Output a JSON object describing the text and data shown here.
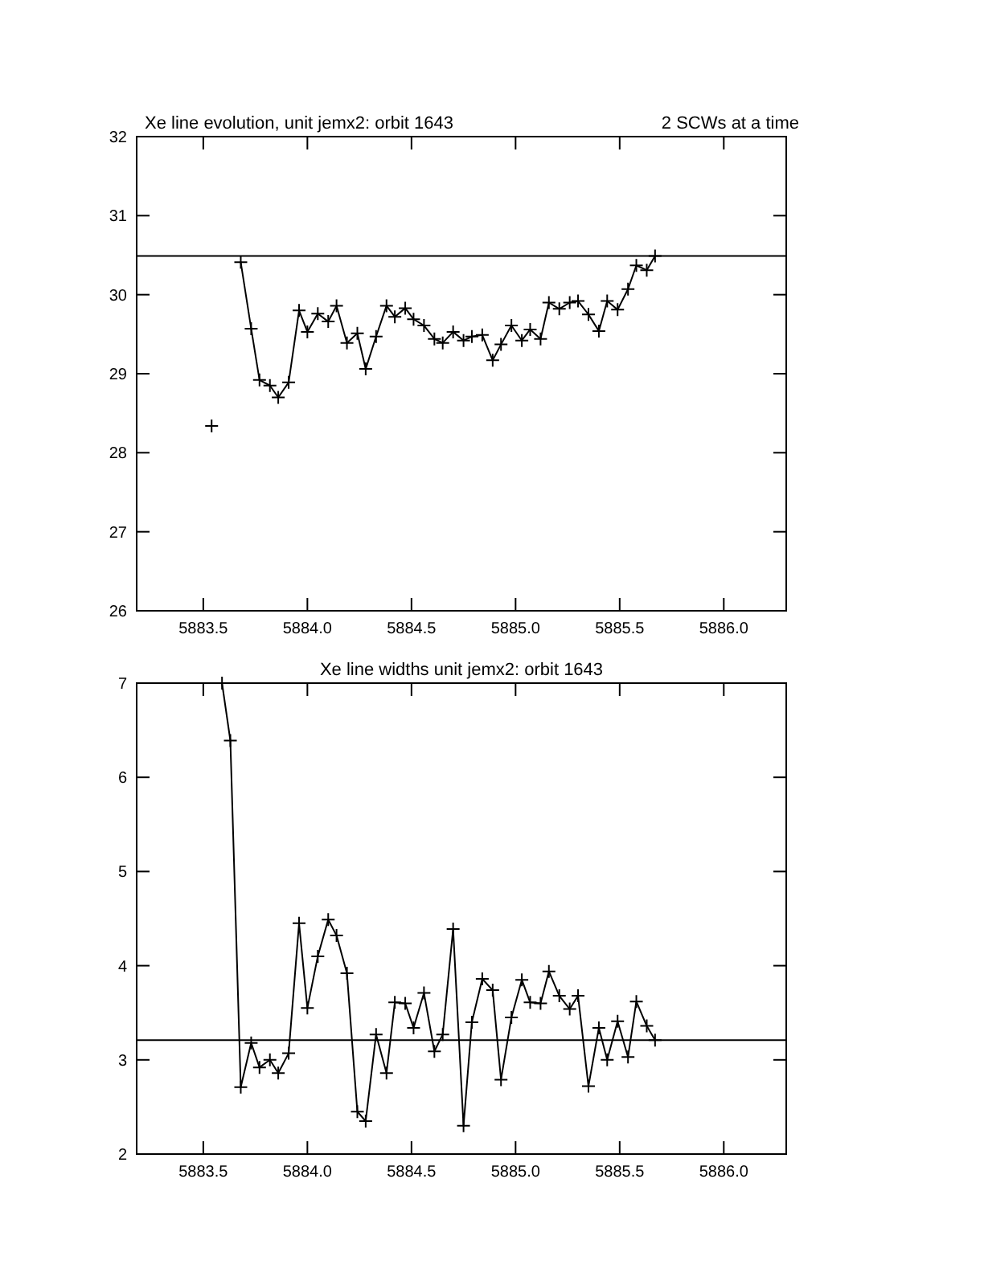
{
  "chart_data": [
    {
      "type": "line",
      "title": "Xe line evolution, unit jemx2: orbit 1643",
      "subtitle": "2 SCWs at a time",
      "marker": "cross",
      "line_style": "solid",
      "grid": false,
      "series": [
        {
          "color": "#000000",
          "x": [
            5883.54
          ],
          "values": [
            28.34
          ]
        },
        {
          "color": "#000000",
          "x": [
            5883.68,
            5883.73,
            5883.77,
            5883.82,
            5883.86,
            5883.91,
            5883.96,
            5884.0,
            5884.05,
            5884.1,
            5884.14,
            5884.19,
            5884.24,
            5884.28,
            5884.33,
            5884.38,
            5884.42,
            5884.47,
            5884.51,
            5884.56,
            5884.61,
            5884.65,
            5884.7,
            5884.75,
            5884.79,
            5884.84,
            5884.89,
            5884.93,
            5884.98,
            5885.03,
            5885.07,
            5885.12,
            5885.16,
            5885.21,
            5885.26,
            5885.3,
            5885.35,
            5885.4,
            5885.44,
            5885.49,
            5885.54,
            5885.58,
            5885.63,
            5885.67
          ],
          "values": [
            30.41,
            29.57,
            28.92,
            28.85,
            28.7,
            28.89,
            29.8,
            29.53,
            29.76,
            29.66,
            29.86,
            29.39,
            29.51,
            29.06,
            29.47,
            29.86,
            29.72,
            29.83,
            29.69,
            29.61,
            29.44,
            29.39,
            29.53,
            29.42,
            29.47,
            29.49,
            29.17,
            29.37,
            29.61,
            29.42,
            29.56,
            29.44,
            29.9,
            29.82,
            29.9,
            29.92,
            29.75,
            29.54,
            29.92,
            29.81,
            30.07,
            30.37,
            30.31,
            30.49
          ]
        }
      ],
      "xlim": [
        5883.18,
        5886.3
      ],
      "xticks": [
        {
          "value": 5883.5,
          "label": "5883.5"
        },
        {
          "value": 5884,
          "label": "5884.0"
        },
        {
          "value": 5884.5,
          "label": "5884.5"
        },
        {
          "value": 5885,
          "label": "5885.0"
        },
        {
          "value": 5885.5,
          "label": "5885.5"
        },
        {
          "value": 5886,
          "label": "5886.0"
        }
      ],
      "ylim": [
        26,
        32
      ],
      "yticks": [
        26,
        27,
        28,
        29,
        30,
        31,
        32
      ],
      "ref_lines": [
        {
          "axis": "y",
          "value": 30.49,
          "color": "#000000"
        }
      ]
    },
    {
      "type": "line",
      "title": "Xe line widths unit jemx2: orbit 1643",
      "marker": "cross",
      "line_style": "solid",
      "grid": false,
      "x": [
        5883.59,
        5883.63,
        5883.68,
        5883.73,
        5883.77,
        5883.82,
        5883.86,
        5883.91,
        5883.96,
        5884.0,
        5884.05,
        5884.1,
        5884.14,
        5884.19,
        5884.24,
        5884.28,
        5884.33,
        5884.38,
        5884.42,
        5884.47,
        5884.51,
        5884.56,
        5884.61,
        5884.65,
        5884.7,
        5884.75,
        5884.79,
        5884.84,
        5884.89,
        5884.93,
        5884.98,
        5885.03,
        5885.07,
        5885.12,
        5885.16,
        5885.21,
        5885.26,
        5885.3,
        5885.35,
        5885.4,
        5885.44,
        5885.49,
        5885.54,
        5885.58,
        5885.63,
        5885.67
      ],
      "series": [
        {
          "color": "#000000",
          "values": [
            7.0,
            6.39,
            2.71,
            3.18,
            2.92,
            3.0,
            2.86,
            3.07,
            4.45,
            3.55,
            4.1,
            4.49,
            4.32,
            3.92,
            2.45,
            2.35,
            3.27,
            2.86,
            3.61,
            3.6,
            3.34,
            3.71,
            3.09,
            3.27,
            4.39,
            2.3,
            3.4,
            3.86,
            3.74,
            2.79,
            3.45,
            3.85,
            3.61,
            3.6,
            3.94,
            3.68,
            3.54,
            3.68,
            2.72,
            3.34,
            3.0,
            3.41,
            3.03,
            3.62,
            3.36,
            3.21
          ]
        }
      ],
      "xlim": [
        5883.18,
        5886.3
      ],
      "xticks": [
        {
          "value": 5883.5,
          "label": "5883.5"
        },
        {
          "value": 5884,
          "label": "5884.0"
        },
        {
          "value": 5884.5,
          "label": "5884.5"
        },
        {
          "value": 5885,
          "label": "5885.0"
        },
        {
          "value": 5885.5,
          "label": "5885.5"
        },
        {
          "value": 5886,
          "label": "5886.0"
        }
      ],
      "ylim": [
        2,
        7
      ],
      "yticks": [
        2,
        3,
        4,
        5,
        6,
        7
      ],
      "ref_lines": [
        {
          "axis": "y",
          "value": 3.21,
          "color": "#000000"
        }
      ]
    }
  ]
}
